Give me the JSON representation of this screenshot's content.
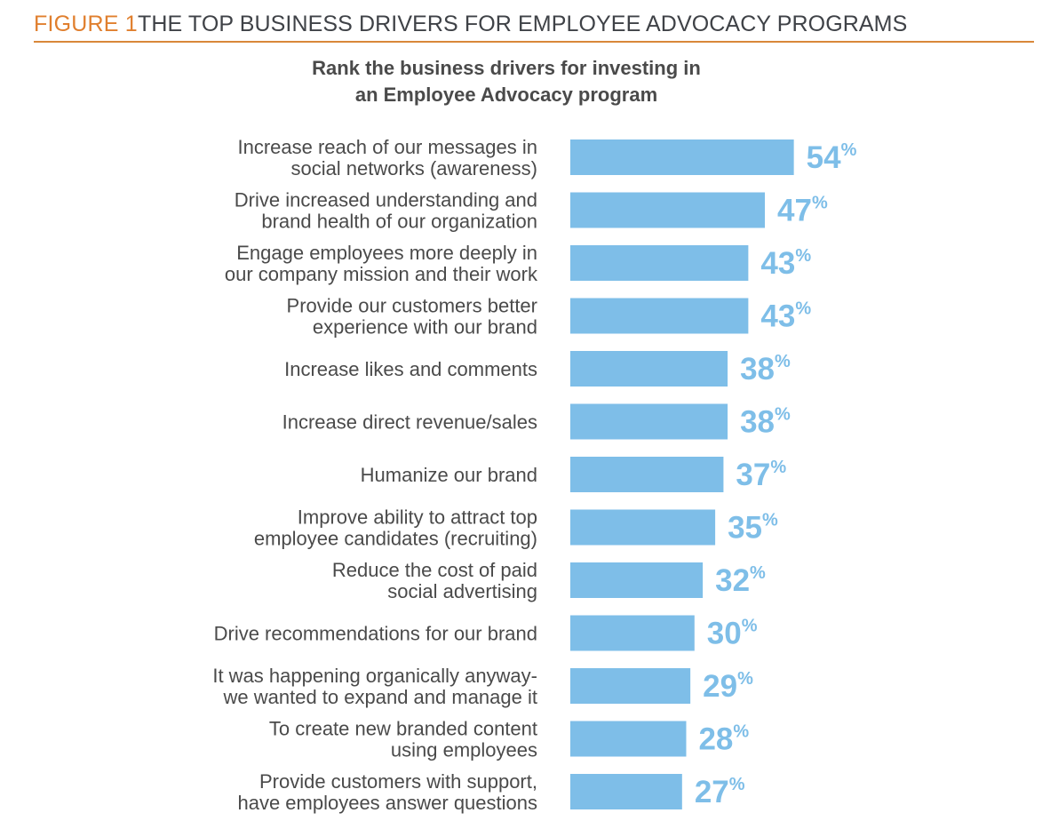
{
  "figure": {
    "number": "FIGURE 1",
    "title": "THE TOP BUSINESS DRIVERS FOR EMPLOYEE ADVOCACY PROGRAMS"
  },
  "colors": {
    "accent": "#e07f2e",
    "bar": "#7ebee8",
    "text": "#4a4a4a"
  },
  "chart_data": {
    "type": "bar",
    "orientation": "horizontal",
    "title": "Rank the business drivers for investing in an Employee Advocacy program",
    "title_lines": [
      "Rank the business drivers for investing in",
      "an Employee Advocacy program"
    ],
    "xlabel": "",
    "ylabel": "",
    "unit": "%",
    "grid": false,
    "categories": [
      [
        "Increase reach of our messages in",
        "social networks (awareness)"
      ],
      [
        "Drive increased understanding and",
        "brand health of our organization"
      ],
      [
        "Engage employees more deeply in",
        "our company mission and their work"
      ],
      [
        "Provide our customers better",
        "experience with our brand"
      ],
      [
        "Increase likes and comments"
      ],
      [
        "Increase direct revenue/sales"
      ],
      [
        "Humanize our brand"
      ],
      [
        "Improve ability to attract top",
        "employee candidates (recruiting)"
      ],
      [
        "Reduce the cost of paid",
        "social advertising"
      ],
      [
        "Drive recommendations for our brand"
      ],
      [
        "It was happening organically anyway-",
        "we wanted to expand and manage it"
      ],
      [
        "To create new branded content",
        "using employees"
      ],
      [
        "Provide customers with support,",
        "have employees answer questions"
      ]
    ],
    "values": [
      54,
      47,
      43,
      43,
      38,
      38,
      37,
      35,
      32,
      30,
      29,
      28,
      27
    ]
  }
}
